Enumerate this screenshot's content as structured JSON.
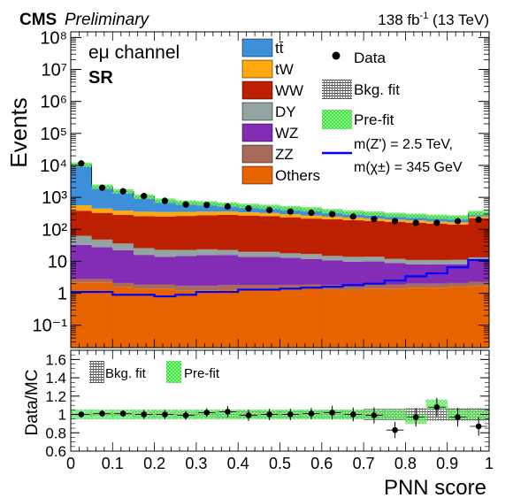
{
  "header": {
    "experiment": "CMS",
    "status": "Preliminary",
    "lumi": "138 fb",
    "lumi_exp": "-1",
    "energy": " (13 TeV)"
  },
  "annotations": {
    "channel": "eμ channel",
    "region": "SR"
  },
  "axes": {
    "xlabel": "PNN score",
    "ylabel_top": "Events",
    "ylabel_bottom": "Data/MC"
  },
  "legend": {
    "samples": [
      {
        "label": "tt̄",
        "color": "#3f90da"
      },
      {
        "label": "tW",
        "color": "#ffa90e"
      },
      {
        "label": "WW",
        "color": "#bd1f01"
      },
      {
        "label": "DY",
        "color": "#94a4a2"
      },
      {
        "label": "WZ",
        "color": "#832db6"
      },
      {
        "label": "ZZ",
        "color": "#a96b59"
      },
      {
        "label": "Others",
        "color": "#e76300"
      }
    ],
    "data": "Data",
    "bkg_fit": "Bkg. fit",
    "prefit": "Pre-fit",
    "signal_line1": "m(Z') = 2.5 TeV,",
    "signal_line2": "m(χ±) = 345 GeV",
    "signal_color": "#0000ff"
  },
  "ratio_legend": {
    "bkg_fit": "Bkg. fit",
    "prefit": "Pre-fit"
  },
  "chart_data": {
    "type": "bar",
    "stacked": true,
    "log_y": true,
    "x_bin_edges": [
      0.0,
      0.05,
      0.1,
      0.15,
      0.2,
      0.25,
      0.3,
      0.35,
      0.4,
      0.45,
      0.5,
      0.55,
      0.6,
      0.65,
      0.7,
      0.75,
      0.8,
      0.85,
      0.9,
      0.95,
      1.0
    ],
    "x_tick_labels": [
      "0",
      "0.1",
      "0.2",
      "0.3",
      "0.4",
      "0.5",
      "0.6",
      "0.7",
      "0.8",
      "0.9",
      "1"
    ],
    "y_tick_labels": [
      "10⁻¹",
      "1",
      "10",
      "10²",
      "10³",
      "10⁴",
      "10⁵",
      "10⁶",
      "10⁷",
      "10⁸"
    ],
    "ylim": [
      0.02,
      150000000
    ],
    "xlim": [
      0,
      1
    ],
    "series": [
      {
        "name": "Others",
        "values": [
          2.2,
          2.2,
          1.6,
          1.4,
          1.4,
          1.2,
          1.2,
          1.3,
          1.3,
          1.3,
          1.3,
          1.4,
          1.3,
          1.3,
          1.4,
          1.4,
          1.5,
          1.5,
          1.6,
          1.7
        ]
      },
      {
        "name": "ZZ",
        "values": [
          0.6,
          0.6,
          0.5,
          0.5,
          0.5,
          0.5,
          0.5,
          0.5,
          0.5,
          0.5,
          0.5,
          0.5,
          0.5,
          0.5,
          0.5,
          0.5,
          0.5,
          0.5,
          0.5,
          0.6
        ]
      },
      {
        "name": "WZ",
        "values": [
          30,
          25,
          20,
          14,
          12,
          13,
          14,
          14,
          12,
          12,
          11,
          10,
          9,
          8,
          8,
          7,
          6,
          6,
          6,
          8
        ]
      },
      {
        "name": "DY",
        "values": [
          30,
          20,
          14,
          10,
          9,
          8,
          8,
          7,
          6,
          6,
          5,
          5,
          4,
          4,
          4,
          3,
          3,
          3,
          3,
          3
        ]
      },
      {
        "name": "WW",
        "values": [
          320,
          280,
          250,
          230,
          230,
          240,
          250,
          260,
          250,
          240,
          220,
          200,
          190,
          180,
          170,
          160,
          150,
          140,
          130,
          210
        ]
      },
      {
        "name": "tW",
        "values": [
          180,
          120,
          100,
          100,
          95,
          90,
          85,
          80,
          70,
          65,
          60,
          55,
          45,
          40,
          35,
          30,
          30,
          25,
          25,
          30
        ]
      },
      {
        "name": "tt̄",
        "values": [
          10000,
          1700,
          1150,
          690,
          440,
          330,
          290,
          230,
          200,
          180,
          160,
          150,
          120,
          100,
          90,
          80,
          75,
          70,
          70,
          70
        ]
      }
    ],
    "data": [
      11500,
      2000,
      1550,
      1100,
      780,
      600,
      580,
      520,
      450,
      400,
      360,
      330,
      300,
      250,
      210,
      180,
      160,
      160,
      180,
      200
    ],
    "signal": {
      "name": "m(Z') = 2.5 TeV, m(χ±) = 345 GeV",
      "values": [
        1.1,
        1.1,
        0.9,
        0.9,
        0.8,
        0.9,
        1.1,
        1.1,
        1.3,
        1.3,
        1.4,
        1.5,
        1.6,
        1.8,
        2,
        2.5,
        3.4,
        4.2,
        6.5,
        11
      ]
    },
    "ratio": {
      "ylim": [
        0.6,
        1.7
      ],
      "y_tick_labels": [
        "0.6",
        "0.8",
        "1",
        "1.2",
        "1.4",
        "1.6"
      ],
      "values": [
        1.0,
        1.01,
        1.01,
        1.0,
        1.0,
        0.99,
        1.02,
        1.03,
        0.99,
        1.0,
        1.0,
        1.01,
        1.02,
        1.0,
        0.99,
        0.83,
        0.97,
        1.08,
        0.97,
        0.87
      ],
      "errors": [
        0.01,
        0.02,
        0.02,
        0.03,
        0.03,
        0.03,
        0.03,
        0.04,
        0.04,
        0.04,
        0.04,
        0.04,
        0.05,
        0.05,
        0.06,
        0.06,
        0.07,
        0.07,
        0.07,
        0.07
      ],
      "prefit_values": [
        1.0,
        1.0,
        1.0,
        1.0,
        1.0,
        1.0,
        1.0,
        1.0,
        1.0,
        1.0,
        1.0,
        1.0,
        1.0,
        1.0,
        1.0,
        1.0,
        0.95,
        1.11,
        1.0,
        1.0
      ]
    }
  }
}
